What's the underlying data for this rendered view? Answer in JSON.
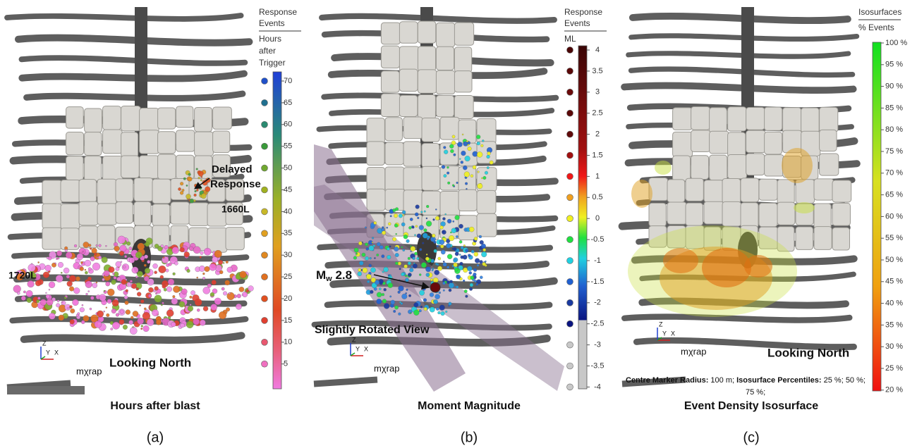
{
  "panels": [
    {
      "letter": "(a)",
      "caption": "Hours after blast",
      "legend": {
        "title": [
          "Response",
          "Events"
        ],
        "subtitle": [
          "Hours",
          "after",
          "Trigger"
        ],
        "ticks": [
          "70",
          "65",
          "60",
          "55",
          "50",
          "45",
          "40",
          "35",
          "30",
          "25",
          "20",
          "15",
          "10",
          "5"
        ]
      },
      "annotations": {
        "delayed": [
          "Delayed",
          "Response"
        ],
        "level_upper": "1660L",
        "level_lower": "1720L",
        "view": "Looking North"
      },
      "logo": "mχrap",
      "axes": [
        "Z",
        "Y",
        "X"
      ]
    },
    {
      "letter": "(b)",
      "caption": "Moment Magnitude",
      "legend": {
        "title": [
          "Response",
          "Events"
        ],
        "subtitle": [
          "ML"
        ],
        "ticks": [
          "4",
          "3.5",
          "3",
          "2.5",
          "2",
          "1.5",
          "1",
          "0.5",
          "0",
          "-0.5",
          "-1",
          "-1.5",
          "-2",
          "-2.5",
          "-3",
          "-3.5",
          "-4"
        ]
      },
      "annotations": {
        "magnitude": [
          "M",
          "w",
          " 2.8"
        ],
        "view": "Slightly Rotated View"
      },
      "logo": "mχrap",
      "axes": [
        "Z",
        "Y",
        "X"
      ]
    },
    {
      "letter": "(c)",
      "caption": "Event Density Isosurface",
      "legend": {
        "title": [
          "Isosurfaces"
        ],
        "subtitle": [
          "% Events"
        ],
        "ticks": [
          "100 %",
          "95 %",
          "90 %",
          "85 %",
          "80 %",
          "75 %",
          "70 %",
          "65 %",
          "60 %",
          "55 %",
          "50 %",
          "45 %",
          "40 %",
          "35 %",
          "30 %",
          "25 %",
          "20 %"
        ]
      },
      "annotations": {
        "view": "Looking North",
        "footnote": [
          "Centre Marker Radius:",
          " 100 m; ",
          "Isosurface Percentiles:",
          " 25 %; 50 %;",
          "75 %;"
        ]
      },
      "logo": "mχrap",
      "axes": [
        "Z",
        "Y",
        "X"
      ]
    }
  ]
}
